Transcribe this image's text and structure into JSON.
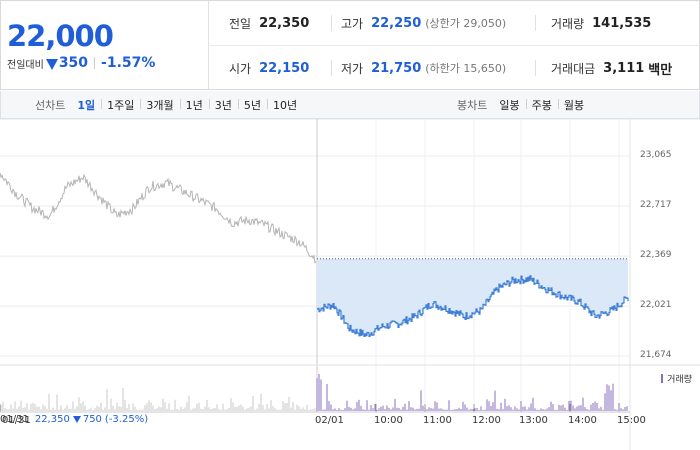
{
  "quote": {
    "price": "22,000",
    "change_label": "전일대비",
    "change_value": "350",
    "change_rate": "-1.57%",
    "stats": {
      "prev_close": {
        "label": "전일",
        "value": "22,350"
      },
      "high": {
        "label": "고가",
        "value": "22,250",
        "sub": "(상한가 29,050)"
      },
      "volume": {
        "label": "거래량",
        "value": "141,535"
      },
      "open": {
        "label": "시가",
        "value": "22,150"
      },
      "low": {
        "label": "저가",
        "value": "21,750",
        "sub": "(하한가 15,650)"
      },
      "trade_value": {
        "label": "거래대금",
        "value": "3,111",
        "unit": "백만"
      }
    }
  },
  "tabs": {
    "line_title": "선차트",
    "line_tabs": [
      "1일",
      "1주일",
      "3개월",
      "1년",
      "3년",
      "5년",
      "10년"
    ],
    "line_active": 0,
    "candle_title": "봉차트",
    "candle_tabs": [
      "일봉",
      "주봉",
      "월봉"
    ]
  },
  "chart_data": {
    "type": "line",
    "y_ticks": [
      "23,065",
      "22,717",
      "22,369",
      "22,021",
      "21,674"
    ],
    "x_ticks": [
      "01/31",
      "02/01",
      "10:00",
      "11:00",
      "12:00",
      "13:00",
      "14:00",
      "15:00"
    ],
    "prev_close_ref": 22350,
    "ylim": [
      21674,
      23065
    ],
    "prev_day_series": {
      "x": [
        "09:00",
        "09:20",
        "09:40",
        "10:00",
        "10:20",
        "10:40",
        "11:00",
        "11:20",
        "11:40",
        "12:00",
        "12:20",
        "12:40",
        "13:00",
        "13:20",
        "13:40",
        "14:00",
        "14:20",
        "14:40",
        "15:00",
        "15:20"
      ],
      "values": [
        22950,
        22800,
        22700,
        22650,
        22850,
        22920,
        22780,
        22650,
        22700,
        22850,
        22880,
        22820,
        22760,
        22700,
        22600,
        22620,
        22580,
        22520,
        22470,
        22350
      ]
    },
    "today_series": {
      "x": [
        "09:00",
        "09:20",
        "09:40",
        "10:00",
        "10:20",
        "10:40",
        "11:00",
        "11:20",
        "11:40",
        "12:00",
        "12:20",
        "12:40",
        "13:00",
        "13:20",
        "13:40",
        "14:00",
        "14:20",
        "14:40",
        "15:00",
        "15:20"
      ],
      "values": [
        22000,
        22030,
        21860,
        21820,
        21880,
        21900,
        21950,
        22040,
        22000,
        21950,
        21990,
        22140,
        22200,
        22210,
        22140,
        22090,
        22050,
        21950,
        21990,
        22080
      ]
    },
    "volume_legend": "거래량",
    "prev_info": {
      "date": "01/31",
      "close": "22,350",
      "change": "750",
      "rate": "(-3.25%)"
    }
  },
  "colors": {
    "accent_blue": "#1f5ed6",
    "prev_line": "#b4b4b4",
    "today_line": "#3f7fd6",
    "fill": "#dbe8f8",
    "volume": "#8a6fc0"
  }
}
